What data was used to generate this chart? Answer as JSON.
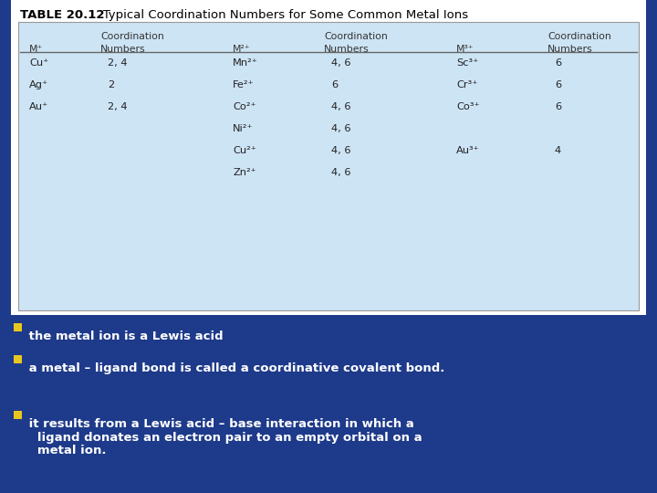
{
  "title": "TABLE 20.12",
  "title_subtitle": "   Typical Coordination Numbers for Some Common Metal Ions",
  "background_color": "#1e3a8a",
  "table_bg": "#cde4f5",
  "bullet_color": "#e8c820",
  "bullet_text_color": "#ffffff",
  "col_headers_row1": [
    "",
    "Coordination",
    "",
    "Coordination",
    "",
    "Coordination"
  ],
  "col_headers_row2": [
    "M⁺",
    "Numbers",
    "M²⁺",
    "Numbers",
    "M³⁺",
    "Numbers"
  ],
  "m1_ions": [
    "Cu⁺",
    "Ag⁺",
    "Au⁺"
  ],
  "m1_nums": [
    "2, 4",
    "2",
    "2, 4"
  ],
  "m2_ions": [
    "Mn²⁺",
    "Fe²⁺",
    "Co²⁺",
    "Ni²⁺",
    "Cu²⁺",
    "Zn²⁺"
  ],
  "m2_nums": [
    "4, 6",
    "6",
    "4, 6",
    "4, 6",
    "4, 6",
    "4, 6"
  ],
  "m3_ions_sparse": [
    [
      0,
      "Sc³⁺"
    ],
    [
      1,
      "Cr³⁺"
    ],
    [
      2,
      "Co³⁺"
    ],
    [
      4,
      "Au³⁺"
    ]
  ],
  "m3_nums_sparse": [
    [
      0,
      "6"
    ],
    [
      1,
      "6"
    ],
    [
      2,
      "6"
    ],
    [
      4,
      "4"
    ]
  ],
  "bullets": [
    " the metal ion is a Lewis acid",
    " a metal – ligand bond is called a coordinative covalent bond.",
    " it results from a Lewis acid – base interaction in which a ligand donates an electron pair to an empty orbital on a metal ion."
  ]
}
